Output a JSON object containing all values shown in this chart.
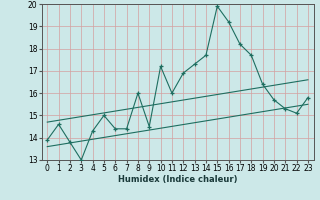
{
  "title": "",
  "xlabel": "Humidex (Indice chaleur)",
  "xlim": [
    -0.5,
    23.5
  ],
  "ylim": [
    13,
    20
  ],
  "yticks": [
    13,
    14,
    15,
    16,
    17,
    18,
    19,
    20
  ],
  "xticks": [
    0,
    1,
    2,
    3,
    4,
    5,
    6,
    7,
    8,
    9,
    10,
    11,
    12,
    13,
    14,
    15,
    16,
    17,
    18,
    19,
    20,
    21,
    22,
    23
  ],
  "bg_color": "#cce8e8",
  "grid_color": "#b0d0d0",
  "line_color": "#1e6e60",
  "main_x": [
    0,
    1,
    2,
    3,
    4,
    5,
    6,
    7,
    8,
    9,
    10,
    11,
    12,
    13,
    14,
    15,
    16,
    17,
    18,
    19,
    20,
    21,
    22,
    23
  ],
  "main_y": [
    13.9,
    14.6,
    13.8,
    13.0,
    14.3,
    15.0,
    14.4,
    14.4,
    16.0,
    14.5,
    17.2,
    16.0,
    16.9,
    17.3,
    17.7,
    19.9,
    19.2,
    18.2,
    17.7,
    16.4,
    15.7,
    15.3,
    15.1,
    15.8
  ],
  "trend1_x": [
    0,
    23
  ],
  "trend1_y": [
    14.7,
    16.6
  ],
  "trend2_x": [
    0,
    23
  ],
  "trend2_y": [
    13.6,
    15.5
  ],
  "xlabel_fontsize": 6.0,
  "tick_fontsize": 5.5
}
